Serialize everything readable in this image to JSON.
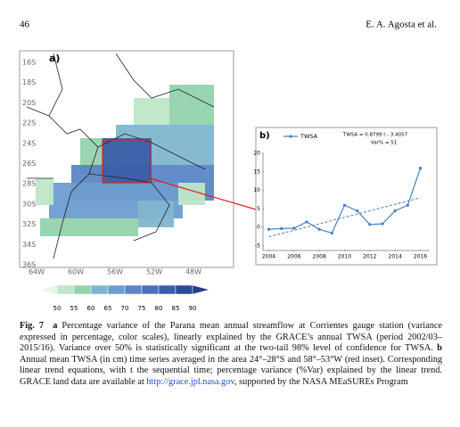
{
  "header": {
    "page_number": "46",
    "authors": "E. A. Agosta et al."
  },
  "map": {
    "panel_label": "a)",
    "lat_labels": [
      "16S",
      "18S",
      "20S",
      "22S",
      "24S",
      "26S",
      "28S",
      "30S",
      "32S",
      "34S",
      "36S"
    ],
    "lon_labels": [
      "64W",
      "60W",
      "56W",
      "52W",
      "48W"
    ],
    "colorbar": {
      "ticks": [
        50,
        55,
        60,
        65,
        70,
        75,
        80,
        85,
        90
      ],
      "colors": [
        "#e6f5e8",
        "#bfe6c8",
        "#93d3ad",
        "#7fb6cf",
        "#6e9dd0",
        "#5b86c6",
        "#4a72b8",
        "#3a5ea8",
        "#2c4c96",
        "#223f86"
      ]
    }
  },
  "chart_data": {
    "type": "line",
    "panel_label": "b)",
    "x": [
      2004,
      2005,
      2006,
      2007,
      2008,
      2009,
      2010,
      2011,
      2012,
      2013,
      2014,
      2015,
      2016
    ],
    "series": [
      {
        "name": "TWSA",
        "color": "#4a7ebb",
        "values": [
          -0.5,
          -0.3,
          -0.2,
          1.5,
          -0.5,
          -1.5,
          6,
          4.5,
          0.8,
          1,
          4.5,
          6,
          16
        ]
      }
    ],
    "trend": {
      "x": [
        2004,
        2016
      ],
      "values": [
        -2.5,
        8
      ],
      "color": "#4a7ebb"
    },
    "annotations": [
      "TWSA = 0.8799 t - 3.4057",
      "Var% = 51"
    ],
    "xlim": [
      2003.4,
      2016.6
    ],
    "xticks": [
      2004,
      2006,
      2008,
      2010,
      2012,
      2014,
      2016
    ],
    "ylim": [
      -5,
      20
    ],
    "yticks": [
      -5,
      0,
      5,
      10,
      15,
      20
    ]
  },
  "caption": {
    "label": "Fig. 7",
    "a": "a",
    "text_a": "Percentage variance of the Parana mean annual streamflow at Corrientes gauge station (variance expressed in percentage, color scales), linearly explained by the GRACE’s annual TWSA (period 2002/03–2015/16). Variance over 50% is statistically significant at the two-tail 98% level of confidence for TWSA.",
    "b": "b",
    "text_b": "Annual mean TWSA (in cm) time series averaged in the area 24°–28°S and 58°–53°W (red inset). Corresponding linear trend equations, with t the sequential time; percentage variance (%Var) explained by the linear trend. GRACE land data are available at",
    "link": "http://grace.jpl.nasa.gov",
    "text_end": ", supported by the NASA MEaSUREs Program"
  }
}
